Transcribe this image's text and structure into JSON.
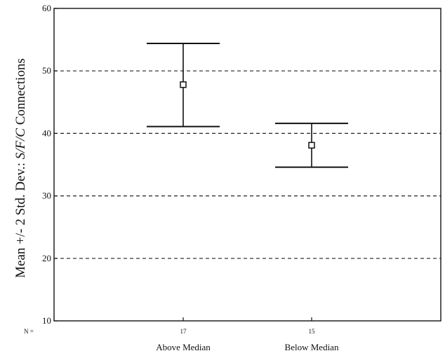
{
  "chart_data": {
    "type": "errorbar",
    "ylabel_prefix": "Mean +/- 2 Std. Dev.: ",
    "ylabel_italic": "S/F/C",
    "ylabel_suffix": " Connections",
    "ylim": [
      10,
      60
    ],
    "yticks": [
      10,
      20,
      30,
      40,
      50,
      60
    ],
    "grid_lines": [
      20,
      30,
      40,
      50
    ],
    "n_label": "N =",
    "categories": [
      "Above Median",
      "Below Median"
    ],
    "n_values": [
      "17",
      "15"
    ],
    "series": [
      {
        "category": "Above Median",
        "mean": 47.8,
        "lower": 41.1,
        "upper": 54.4
      },
      {
        "category": "Below Median",
        "mean": 38.1,
        "lower": 34.6,
        "upper": 41.6
      }
    ]
  }
}
